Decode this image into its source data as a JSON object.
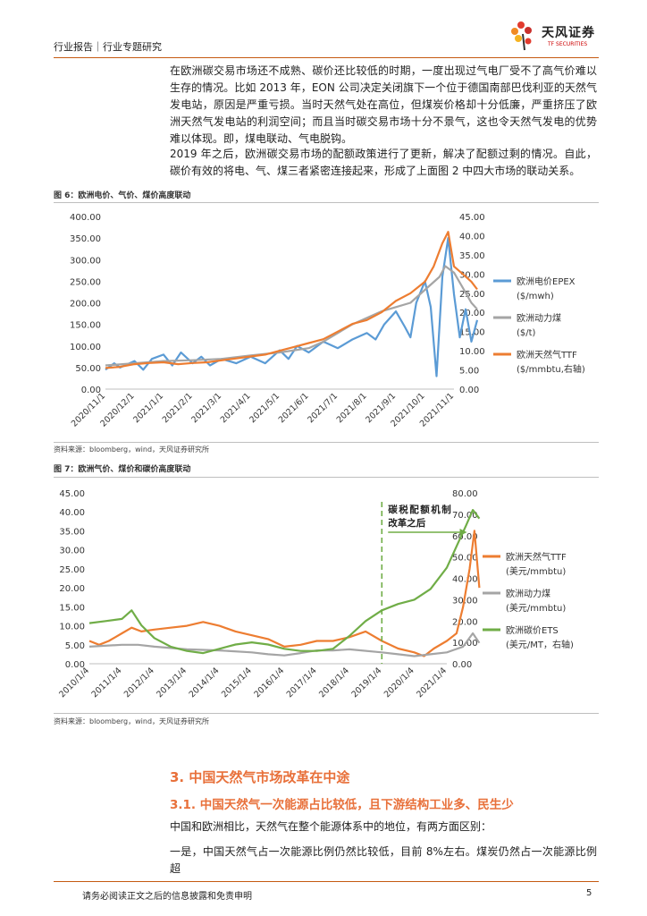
{
  "header": {
    "left": "行业报告｜行业专题研究",
    "logo_cn": "天风证券",
    "logo_en": "TF SECURITIES"
  },
  "paragraphs": [
    "在欧洲碳交易市场还不成熟、碳价还比较低的时期，一度出现过气电厂受不了高气价难以生存的情况。比如 2013 年，EON 公司决定关闭旗下一个位于德国南部巴伐利亚的天然气发电站，原因是严重亏损。当时天然气处在高位，但煤炭价格却十分低廉，严重挤压了欧洲天然气发电站的利润空间；而且当时碳交易市场十分不景气，这也令天然气发电的优势难以体现。即，煤电联动、气电脱钩。",
    "2019 年之后，欧洲碳交易市场的配额政策进行了更新，解决了配额过剩的情况。自此，碳价有效的将电、气、煤三者紧密连接起来，形成了上面图 2 中四大市场的联动关系。"
  ],
  "figure6": {
    "title": "图 6：欧洲电价、气价、煤价高度联动",
    "source": "资料来源：bloomberg，wind，天风证券研究所"
  },
  "figure7": {
    "title": "图 7：欧洲气价、煤价和碳价高度联动",
    "source": "资料来源：bloomberg，wind，天风证券研究所",
    "annotation_line1": "碳税配额机制",
    "annotation_line2": "改革之后"
  },
  "section3": "3. 中国天然气市场改革在中途",
  "section31": "3.1. 中国天然气一次能源占比较低，且下游结构工业多、民生少",
  "text_after": [
    "中国和欧洲相比，天然气在整个能源体系中的地位，有两方面区别：",
    "一是，中国天然气占一次能源比例仍然比较低，目前 8%左右。煤炭仍然占一次能源比例超"
  ],
  "footer": {
    "text": "请务必阅读正文之后的信息披露和免责申明",
    "page": "5"
  },
  "chart_data": [
    {
      "type": "line",
      "title": "图 6：欧洲电价、气价、煤价高度联动",
      "x_ticks": [
        "2020/11/1",
        "2020/12/1",
        "2021/1/1",
        "2021/2/1",
        "2021/3/1",
        "2021/4/1",
        "2021/5/1",
        "2021/6/1",
        "2021/7/1",
        "2021/8/1",
        "2021/9/1",
        "2021/10/1",
        "2021/11/1"
      ],
      "y_left_ticks": [
        "0.00",
        "50.00",
        "100.00",
        "150.00",
        "200.00",
        "250.00",
        "300.00",
        "350.00",
        "400.00"
      ],
      "y_right_ticks": [
        "0.00",
        "5.00",
        "10.00",
        "15.00",
        "20.00",
        "25.00",
        "30.00",
        "35.00",
        "40.00",
        "45.00"
      ],
      "ylim_left": [
        0,
        400
      ],
      "ylim_right": [
        0,
        45
      ],
      "series": [
        {
          "name": "欧洲电价EPEX",
          "unit": "($/mwh)",
          "axis": "left",
          "color": "#5b9bd5",
          "values": [
            [
              0,
              45
            ],
            [
              0.3,
              60
            ],
            [
              0.5,
              50
            ],
            [
              1,
              65
            ],
            [
              1.3,
              45
            ],
            [
              1.6,
              70
            ],
            [
              2,
              80
            ],
            [
              2.3,
              55
            ],
            [
              2.6,
              85
            ],
            [
              3,
              60
            ],
            [
              3.3,
              75
            ],
            [
              3.6,
              55
            ],
            [
              4,
              70
            ],
            [
              4.5,
              60
            ],
            [
              5,
              75
            ],
            [
              5.5,
              60
            ],
            [
              6,
              90
            ],
            [
              6.3,
              70
            ],
            [
              6.6,
              100
            ],
            [
              7,
              85
            ],
            [
              7.5,
              110
            ],
            [
              8,
              95
            ],
            [
              8.5,
              115
            ],
            [
              9,
              130
            ],
            [
              9.3,
              115
            ],
            [
              9.6,
              150
            ],
            [
              10,
              180
            ],
            [
              10.3,
              145
            ],
            [
              10.5,
              120
            ],
            [
              10.7,
              200
            ],
            [
              11,
              250
            ],
            [
              11.2,
              190
            ],
            [
              11.4,
              30
            ],
            [
              11.6,
              260
            ],
            [
              11.8,
              350
            ],
            [
              12,
              220
            ],
            [
              12.2,
              120
            ],
            [
              12.4,
              185
            ],
            [
              12.6,
              110
            ],
            [
              12.8,
              160
            ]
          ]
        },
        {
          "name": "欧洲动力煤",
          "unit": "($/t)",
          "axis": "left",
          "color": "#a5a5a5",
          "values": [
            [
              0,
              55
            ],
            [
              1,
              60
            ],
            [
              2,
              65
            ],
            [
              3,
              67
            ],
            [
              4,
              70
            ],
            [
              5,
              78
            ],
            [
              6,
              85
            ],
            [
              7,
              95
            ],
            [
              7.5,
              110
            ],
            [
              8,
              130
            ],
            [
              8.5,
              150
            ],
            [
              9,
              165
            ],
            [
              9.5,
              180
            ],
            [
              10,
              190
            ],
            [
              10.5,
              200
            ],
            [
              11,
              230
            ],
            [
              11.5,
              260
            ],
            [
              11.7,
              285
            ],
            [
              12,
              270
            ],
            [
              12.3,
              235
            ],
            [
              12.6,
              200
            ],
            [
              12.8,
              185
            ]
          ]
        },
        {
          "name": "欧洲天然气TTF",
          "unit": "($/mmbtu,右轴)",
          "axis": "right",
          "color": "#ed7d31",
          "values": [
            [
              0,
              5.5
            ],
            [
              0.5,
              5.8
            ],
            [
              1,
              6.5
            ],
            [
              1.5,
              6.8
            ],
            [
              2,
              7
            ],
            [
              2.5,
              6.5
            ],
            [
              3,
              6.8
            ],
            [
              3.5,
              7
            ],
            [
              4,
              7.5
            ],
            [
              4.5,
              8
            ],
            [
              5,
              8.5
            ],
            [
              5.5,
              9
            ],
            [
              6,
              10
            ],
            [
              6.5,
              11
            ],
            [
              7,
              12
            ],
            [
              7.5,
              13
            ],
            [
              8,
              15
            ],
            [
              8.5,
              17
            ],
            [
              9,
              18
            ],
            [
              9.5,
              20
            ],
            [
              10,
              23
            ],
            [
              10.5,
              25
            ],
            [
              11,
              28
            ],
            [
              11.3,
              32
            ],
            [
              11.6,
              38
            ],
            [
              11.8,
              41
            ],
            [
              12,
              32
            ],
            [
              12.3,
              30
            ],
            [
              12.6,
              28
            ],
            [
              12.8,
              26
            ]
          ]
        }
      ]
    },
    {
      "type": "line",
      "title": "图 7：欧洲气价、煤价和碳价高度联动",
      "x_ticks": [
        "2010/1/4",
        "2011/1/4",
        "2012/1/4",
        "2013/1/4",
        "2014/1/4",
        "2015/1/4",
        "2016/1/4",
        "2017/1/4",
        "2018/1/4",
        "2019/1/4",
        "2020/1/4",
        "2021/1/4"
      ],
      "y_left_ticks": [
        "0.00",
        "5.00",
        "10.00",
        "15.00",
        "20.00",
        "25.00",
        "30.00",
        "35.00",
        "40.00",
        "45.00"
      ],
      "y_right_ticks": [
        "0.00",
        "10.00",
        "20.00",
        "30.00",
        "40.00",
        "50.00",
        "60.00",
        "70.00",
        "80.00"
      ],
      "ylim_left": [
        0,
        45
      ],
      "ylim_right": [
        0,
        80
      ],
      "series": [
        {
          "name": "欧洲天然气TTF",
          "unit": "(美元/mmbtu)",
          "axis": "left",
          "color": "#ed7d31",
          "values": [
            [
              0,
              6
            ],
            [
              0.3,
              5
            ],
            [
              0.6,
              6
            ],
            [
              1,
              8
            ],
            [
              1.3,
              9.5
            ],
            [
              1.6,
              8.5
            ],
            [
              2,
              9
            ],
            [
              2.5,
              9.5
            ],
            [
              3,
              10
            ],
            [
              3.5,
              11
            ],
            [
              4,
              10
            ],
            [
              4.5,
              8.5
            ],
            [
              5,
              7.5
            ],
            [
              5.5,
              6.5
            ],
            [
              6,
              4.5
            ],
            [
              6.5,
              5
            ],
            [
              7,
              6
            ],
            [
              7.5,
              6
            ],
            [
              8,
              7
            ],
            [
              8.5,
              8.5
            ],
            [
              9,
              6
            ],
            [
              9.5,
              4
            ],
            [
              10,
              3
            ],
            [
              10.3,
              2
            ],
            [
              10.6,
              4
            ],
            [
              11,
              6
            ],
            [
              11.3,
              8
            ],
            [
              11.5,
              15
            ],
            [
              11.7,
              25
            ],
            [
              11.85,
              35
            ],
            [
              12,
              20
            ]
          ]
        },
        {
          "name": "欧洲动力煤",
          "unit": "(美元/mmbtu)",
          "axis": "left",
          "color": "#a5a5a5",
          "values": [
            [
              0,
              4.5
            ],
            [
              1,
              5
            ],
            [
              1.5,
              5
            ],
            [
              2,
              4.5
            ],
            [
              3,
              3.8
            ],
            [
              4,
              3.5
            ],
            [
              5,
              3
            ],
            [
              5.5,
              2.5
            ],
            [
              6,
              2.2
            ],
            [
              6.5,
              2.8
            ],
            [
              7,
              3.5
            ],
            [
              7.5,
              3.5
            ],
            [
              8,
              3.8
            ],
            [
              9,
              3
            ],
            [
              9.5,
              2.5
            ],
            [
              10,
              2
            ],
            [
              10.5,
              2.5
            ],
            [
              11,
              3
            ],
            [
              11.5,
              4.5
            ],
            [
              11.8,
              8
            ],
            [
              12,
              5.5
            ]
          ]
        },
        {
          "name": "欧洲碳价ETS",
          "unit": "(美元/MT，右轴)",
          "axis": "right",
          "color": "#70ad47",
          "values": [
            [
              0,
              19
            ],
            [
              0.5,
              20
            ],
            [
              1,
              21
            ],
            [
              1.3,
              25
            ],
            [
              1.6,
              18
            ],
            [
              2,
              12
            ],
            [
              2.5,
              8
            ],
            [
              3,
              6
            ],
            [
              3.5,
              5
            ],
            [
              4,
              7
            ],
            [
              4.5,
              9
            ],
            [
              5,
              10
            ],
            [
              5.5,
              9
            ],
            [
              6,
              7
            ],
            [
              6.5,
              6
            ],
            [
              7,
              6
            ],
            [
              7.5,
              7
            ],
            [
              8,
              13
            ],
            [
              8.5,
              20
            ],
            [
              9,
              25
            ],
            [
              9.5,
              28
            ],
            [
              10,
              30
            ],
            [
              10.5,
              35
            ],
            [
              11,
              45
            ],
            [
              11.3,
              55
            ],
            [
              11.6,
              65
            ],
            [
              11.8,
              72
            ],
            [
              12,
              68
            ]
          ]
        }
      ]
    }
  ]
}
